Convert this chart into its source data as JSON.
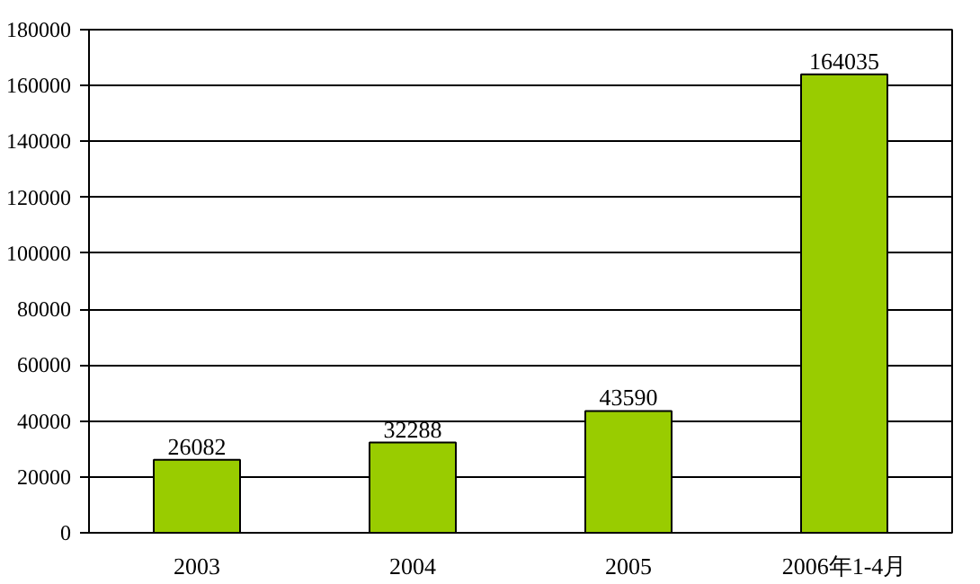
{
  "chart_data": {
    "type": "bar",
    "categories": [
      "2003",
      "2004",
      "2005",
      "2006年1-4月"
    ],
    "values": [
      26082,
      32288,
      43590,
      164035
    ],
    "color": "#99cc00",
    "ylim": [
      0,
      180000
    ],
    "yticks": [
      0,
      20000,
      40000,
      60000,
      80000,
      100000,
      120000,
      140000,
      160000,
      180000
    ],
    "grid": "y",
    "data_labels": true
  }
}
